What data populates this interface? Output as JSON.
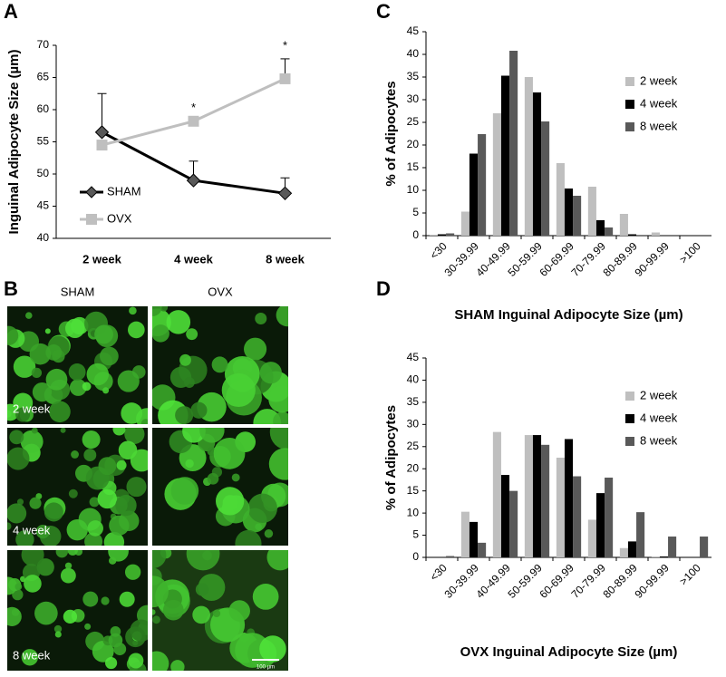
{
  "panel_labels": [
    "A",
    "B",
    "C",
    "D"
  ],
  "panel_b": {
    "columns": [
      "SHAM",
      "OVX"
    ],
    "rows": [
      "2 week",
      "4 week",
      "8 week"
    ],
    "scale_bar": "100 µm"
  },
  "chart_data": [
    {
      "type": "line",
      "y_label": "Inguinal Adipocyte Size (µm)",
      "categories": [
        "2 week",
        "4 week",
        "8 week"
      ],
      "series": [
        {
          "name": "SHAM",
          "color": "#000000",
          "marker_color": "#595959",
          "marker": "diamond",
          "values": [
            56.5,
            49.0,
            47.0
          ],
          "errors": [
            6.0,
            3.0,
            2.4
          ]
        },
        {
          "name": "OVX",
          "color": "#bfbfbf",
          "marker_color": "#bfbfbf",
          "marker": "square",
          "values": [
            54.5,
            58.2,
            64.8
          ],
          "errors": [
            null,
            null,
            3.1
          ]
        }
      ],
      "annotations": [
        "*",
        "*"
      ],
      "ylim": [
        40,
        70
      ],
      "yticks": [
        40,
        45,
        50,
        55,
        60,
        65,
        70
      ],
      "grid": false,
      "legend": "lower left"
    },
    {
      "type": "bar",
      "y_label": "% of Adipocytes",
      "x_label": "SHAM Inguinal Adipocyte Size (µm)",
      "categories": [
        "<30",
        "30-39.99",
        "40-49.99",
        "50-59.99",
        "60-69.99",
        "70-79.99",
        "80-89.99",
        "90-99.99",
        ">100"
      ],
      "series": [
        {
          "name": "2 week",
          "color": "#bfbfbf",
          "values": [
            0.2,
            5.3,
            27,
            35,
            16,
            10.8,
            4.8,
            0.7,
            0
          ]
        },
        {
          "name": "4 week",
          "color": "#000000",
          "values": [
            0.3,
            18.1,
            35.3,
            31.6,
            10.4,
            3.4,
            0.3,
            0,
            0
          ]
        },
        {
          "name": "8 week",
          "color": "#595959",
          "values": [
            0.5,
            22.4,
            40.8,
            25.2,
            8.8,
            1.8,
            0,
            0,
            0
          ]
        }
      ],
      "ylim": [
        0,
        45
      ],
      "yticks": [
        0,
        5,
        10,
        15,
        20,
        25,
        30,
        35,
        40,
        45
      ],
      "grid": false,
      "legend": "right"
    },
    {
      "type": "bar",
      "y_label": "% of Adipocytes",
      "x_label": "OVX Inguinal Adipocyte Size (µm)",
      "categories": [
        "<30",
        "30-39.99",
        "40-49.99",
        "50-59.99",
        "60-69.99",
        "70-79.99",
        "80-89.99",
        "90-99.99",
        ">100"
      ],
      "series": [
        {
          "name": "2 week",
          "color": "#bfbfbf",
          "values": [
            0,
            10.3,
            28.3,
            27.6,
            22.5,
            8.5,
            2.1,
            0.2,
            0
          ]
        },
        {
          "name": "4 week",
          "color": "#000000",
          "values": [
            0,
            8.0,
            18.6,
            27.6,
            26.7,
            14.5,
            3.6,
            0.2,
            0
          ]
        },
        {
          "name": "8 week",
          "color": "#595959",
          "values": [
            0.3,
            3.3,
            15.0,
            25.4,
            18.3,
            18.0,
            10.2,
            4.7,
            4.7
          ]
        }
      ],
      "ylim": [
        0,
        45
      ],
      "yticks": [
        0,
        5,
        10,
        15,
        20,
        25,
        30,
        35,
        40,
        45
      ],
      "grid": false,
      "legend": "right"
    }
  ]
}
